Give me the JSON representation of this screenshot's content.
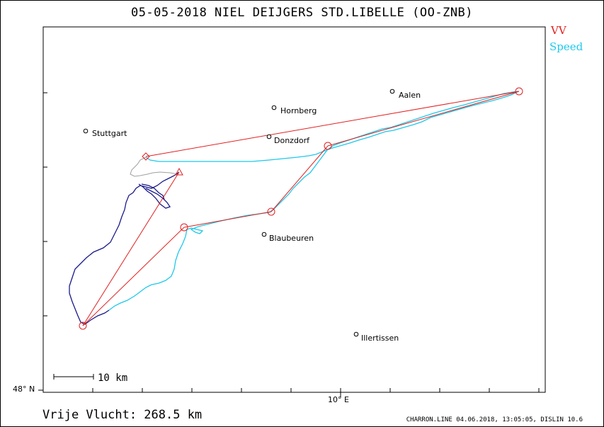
{
  "title": "05-05-2018    NIEL DEIJGERS    STD.LIBELLE (OO-ZNB)",
  "legend": {
    "vv": "VV",
    "speed": "Speed"
  },
  "colors": {
    "vv": "#e02020",
    "speed": "#1fc8ea",
    "track_start": "#1a1a8a",
    "track_gray": "#a0a0a0"
  },
  "axes": {
    "lat_label": "48° N",
    "lon_label": "10° E"
  },
  "scale_label": "10  km",
  "distance": "Vrije Vlucht:  268.5 km",
  "footer": "CHARRON.LINE 04.06.2018, 13:05:05, DISLIN 10.6",
  "towns": {
    "aalen": "Aalen",
    "hornberg": "Hornberg",
    "stuttgart": "Stuttgart",
    "donzdorf": "Donzdorf",
    "blaubeuren": "Blaubeuren",
    "illertissen": "Illertissen"
  }
}
